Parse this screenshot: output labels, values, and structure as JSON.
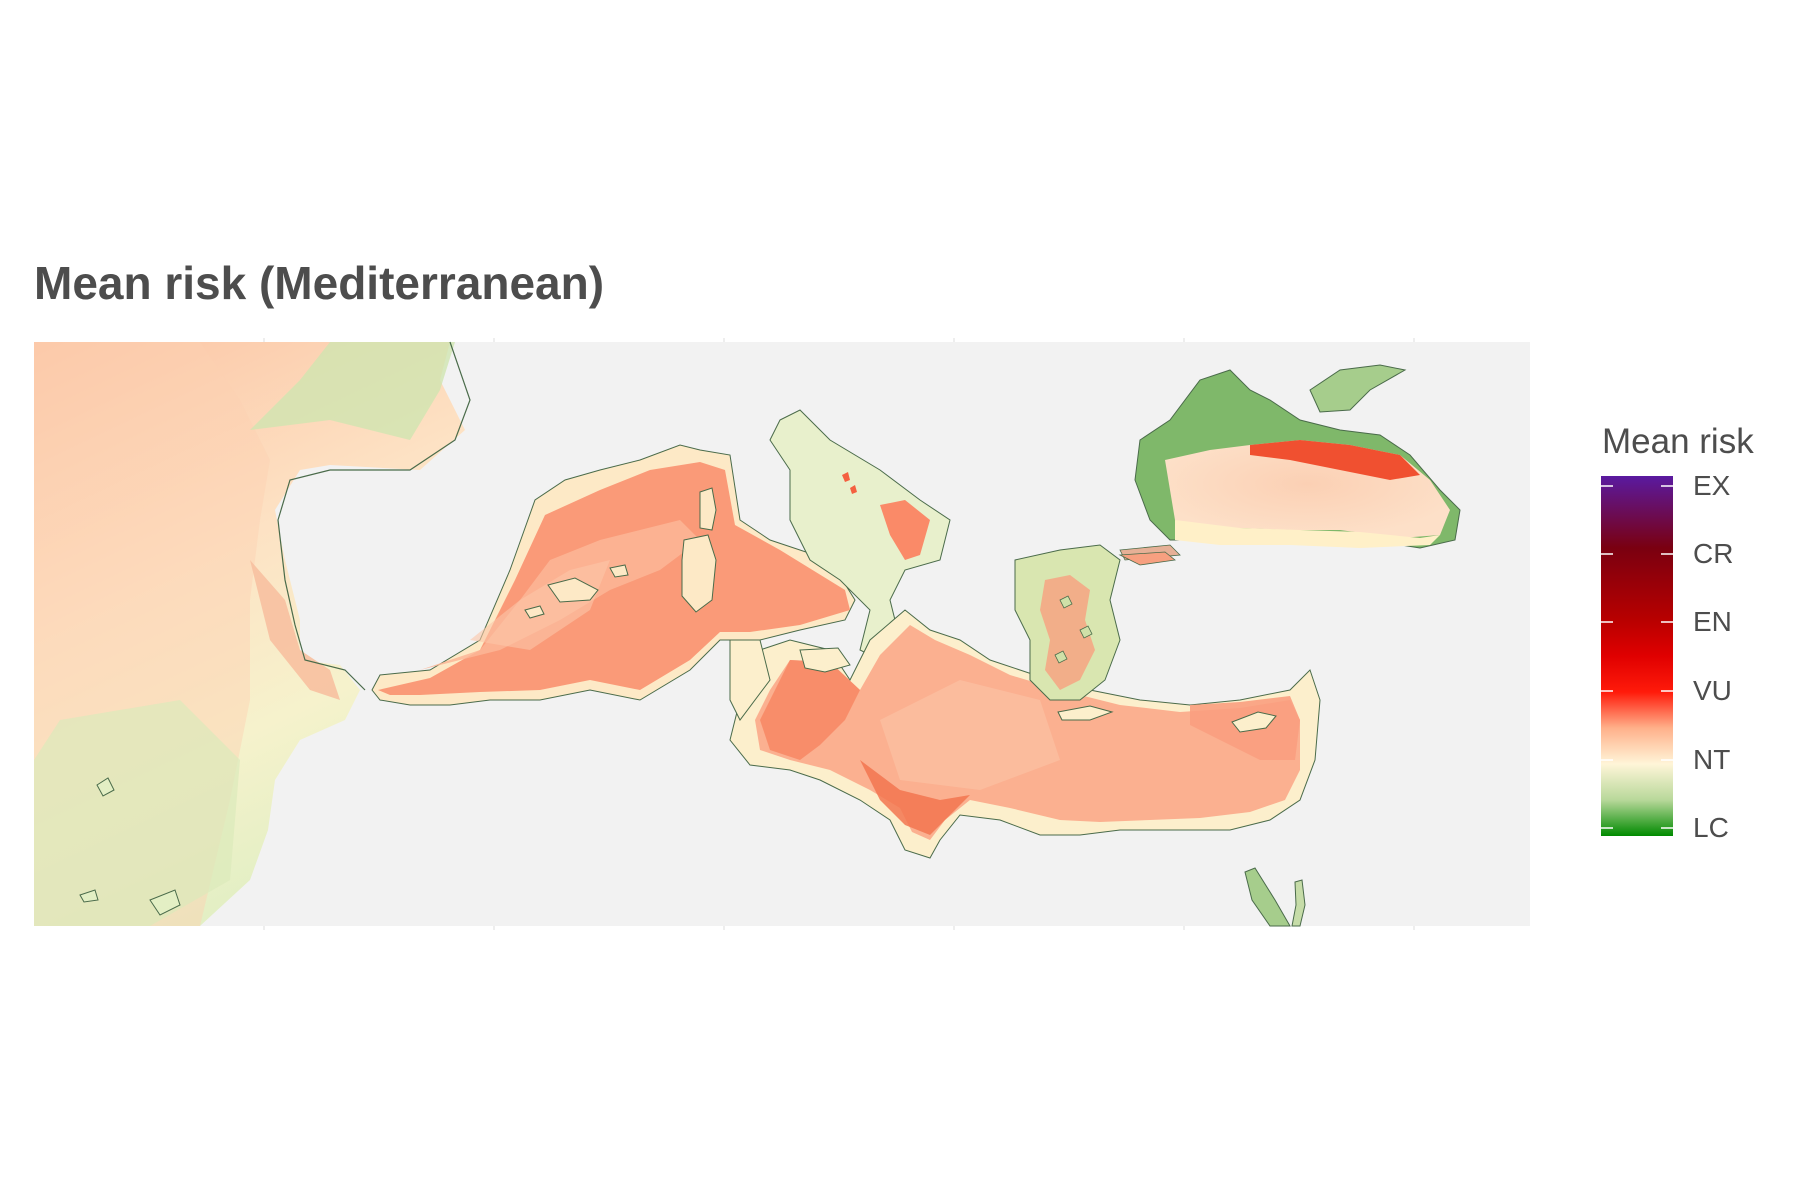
{
  "title": "Mean risk (Mediterranean)",
  "legend": {
    "title": "Mean risk",
    "categories": [
      "EX",
      "CR",
      "EN",
      "VU",
      "NT",
      "LC"
    ]
  },
  "colors": {
    "panel_background": "#f2f2f2",
    "land_outline": "#4a6b4a",
    "risk_gradient": [
      "#008a00",
      "#b8d89a",
      "#fff5d8",
      "#ffb08a",
      "#ff3a1a",
      "#e00000",
      "#a00000",
      "#6a0020",
      "#5a1a9a"
    ]
  }
}
